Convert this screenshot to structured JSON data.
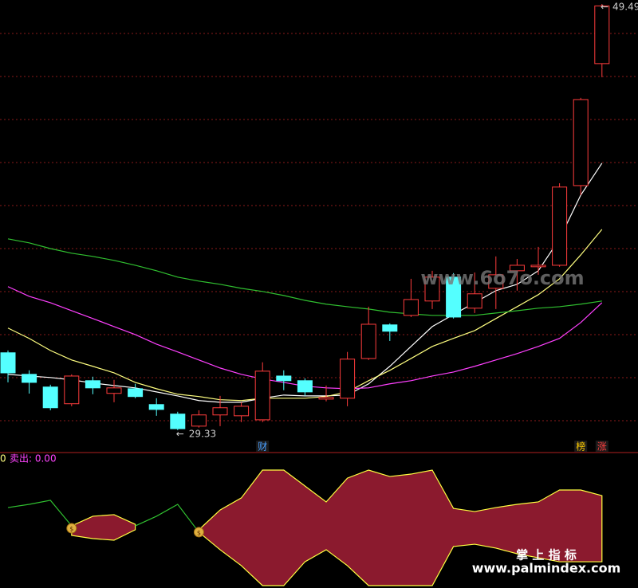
{
  "chart_data": [
    {
      "type": "candlestick",
      "up_color": "#ff3c3c",
      "down_color": "#54ffff",
      "ylim": [
        28.27,
        49.68
      ],
      "open": [
        32.99,
        31.97,
        31.37,
        30.58,
        31.67,
        31.07,
        31.29,
        30.54,
        30.09,
        29.52,
        30.05,
        30.01,
        29.82,
        31.89,
        31.67,
        30.8,
        30.84,
        32.72,
        34.31,
        34.76,
        35.44,
        36.57,
        35.1,
        36.04,
        36.87,
        37.06,
        37.13,
        40.9,
        46.67
      ],
      "high": [
        33.1,
        32.16,
        31.48,
        31.97,
        31.86,
        31.71,
        31.52,
        30.84,
        30.2,
        30.27,
        30.95,
        30.65,
        32.54,
        32.16,
        31.78,
        31.44,
        33.03,
        35.17,
        34.38,
        36.49,
        36.87,
        36.76,
        36.79,
        37.55,
        37.43,
        38.0,
        41.01,
        45.05,
        49.49
      ],
      "low": [
        31.59,
        31.06,
        30.27,
        30.46,
        31.03,
        30.65,
        30.84,
        30.01,
        29.33,
        29.45,
        29.52,
        29.71,
        29.71,
        31.22,
        30.95,
        30.69,
        30.46,
        32.65,
        33.55,
        34.68,
        35.06,
        34.61,
        34.87,
        35.06,
        35.93,
        36.68,
        37.06,
        40.45,
        46.03
      ],
      "close": [
        32.04,
        31.59,
        30.39,
        31.89,
        31.33,
        31.33,
        30.92,
        30.31,
        29.4,
        30.05,
        30.39,
        30.46,
        32.12,
        31.67,
        31.14,
        30.88,
        32.69,
        34.34,
        34.01,
        35.51,
        36.57,
        34.68,
        35.78,
        36.68,
        37.13,
        37.13,
        40.83,
        44.97,
        49.4
      ],
      "series": [
        {
          "color": "#ffffff",
          "values": [
            31.97,
            31.89,
            31.82,
            31.71,
            31.56,
            31.44,
            31.33,
            31.14,
            30.95,
            30.73,
            30.65,
            30.65,
            30.84,
            30.99,
            30.95,
            30.95,
            30.99,
            31.52,
            32.35,
            33.29,
            34.23,
            34.8,
            35.36,
            35.93,
            36.23,
            36.87,
            38.38,
            40.45,
            41.96
          ]
        },
        {
          "color": "#ffff80",
          "values": [
            34.16,
            33.67,
            33.1,
            32.65,
            32.35,
            32.04,
            31.59,
            31.29,
            31.03,
            30.92,
            30.77,
            30.73,
            30.84,
            30.84,
            30.84,
            30.92,
            31.14,
            31.67,
            32.16,
            32.72,
            33.29,
            33.67,
            34.04,
            34.61,
            35.17,
            35.74,
            36.49,
            37.62,
            38.83
          ]
        },
        {
          "color": "#ff40ff",
          "values": [
            36.12,
            35.66,
            35.36,
            34.98,
            34.61,
            34.23,
            33.85,
            33.4,
            33.03,
            32.65,
            32.27,
            31.97,
            31.75,
            31.59,
            31.41,
            31.33,
            31.29,
            31.33,
            31.52,
            31.67,
            31.89,
            32.08,
            32.35,
            32.65,
            32.95,
            33.29,
            33.67,
            34.42,
            35.36
          ]
        },
        {
          "color": "#30c030",
          "values": [
            38.38,
            38.19,
            37.92,
            37.7,
            37.55,
            37.36,
            37.13,
            36.87,
            36.57,
            36.38,
            36.23,
            36.04,
            35.89,
            35.7,
            35.47,
            35.29,
            35.17,
            35.06,
            34.91,
            34.83,
            34.76,
            34.76,
            34.76,
            34.87,
            34.98,
            35.1,
            35.17,
            35.29,
            35.44
          ]
        }
      ],
      "annotations": [
        {
          "text": "财",
          "index": 12,
          "color": "#4aa0ff"
        },
        {
          "text": "榜",
          "index": 27,
          "color": "#ffcc00"
        },
        {
          "text": "涨",
          "index": 28,
          "color": "#ff4040"
        }
      ]
    },
    {
      "type": "band",
      "ylim": [
        0,
        100
      ],
      "label": "卖出: 0.00",
      "left_label": "0",
      "label_color": "#ff44ff",
      "left_label_color": "#ffff80",
      "band_color": "#8b1a2e",
      "edge_color": "#ffff40",
      "line_color": "#30c030",
      "band_top": [
        null,
        null,
        null,
        46.4,
        53.6,
        54.8,
        47.6,
        null,
        null,
        43.5,
        58.3,
        67.3,
        88.1,
        88.1,
        76.2,
        64.3,
        82.1,
        88.1,
        83.3,
        85.1,
        88.1,
        59.5,
        57.1,
        60.1,
        62.5,
        64.3,
        73.2,
        73.2,
        69.0
      ],
      "band_bottom": [
        null,
        null,
        null,
        39.3,
        36.9,
        35.7,
        43.5,
        null,
        null,
        41.7,
        28.6,
        16.7,
        1.8,
        1.8,
        19.6,
        28.6,
        16.7,
        1.8,
        1.8,
        1.8,
        1.8,
        31.0,
        32.7,
        29.8,
        25.6,
        22.6,
        19.6,
        19.6,
        19.6
      ],
      "line": [
        60.1,
        62.5,
        65.5,
        46.4,
        null,
        null,
        46.4,
        53.6,
        62.5,
        41.7,
        null,
        null,
        null,
        null,
        null,
        null,
        null,
        null,
        null,
        null,
        null,
        null,
        null,
        null,
        null,
        null,
        null,
        null,
        null
      ]
    }
  ],
  "watermarks": [
    "www.6o7o.com",
    "掌 上 指 标",
    "www.palmindex.com"
  ]
}
